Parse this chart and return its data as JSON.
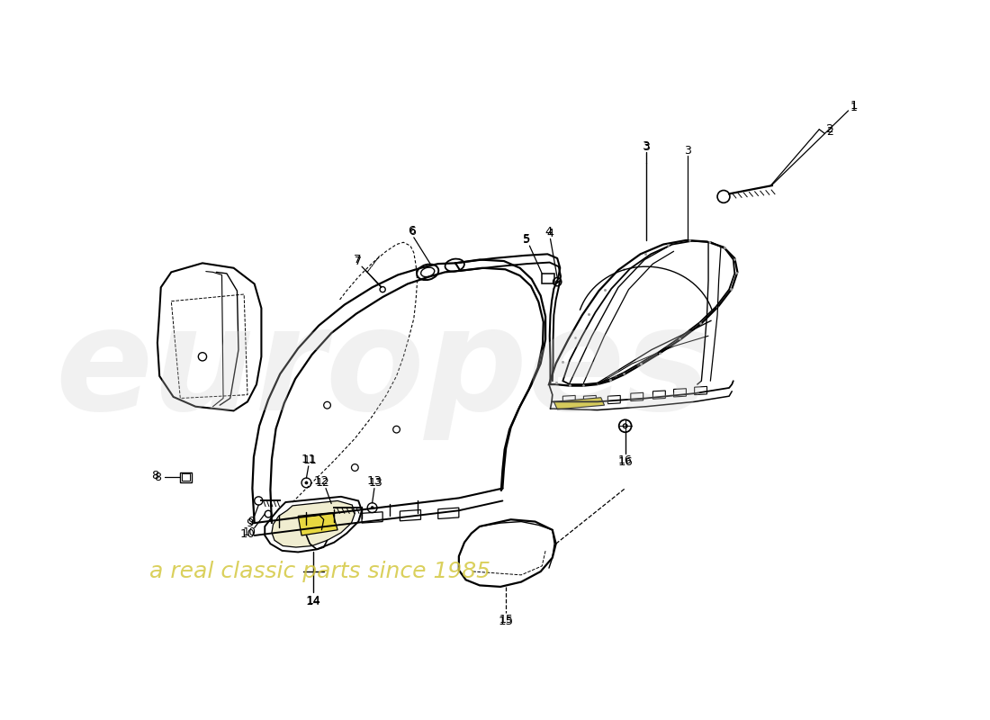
{
  "bg": "#ffffff",
  "lc": "#000000",
  "wm1_color": "#d0d0d0",
  "wm2_color": "#d4c840",
  "wm1_text": "europes",
  "wm2_text": "a real classic parts since 1985"
}
